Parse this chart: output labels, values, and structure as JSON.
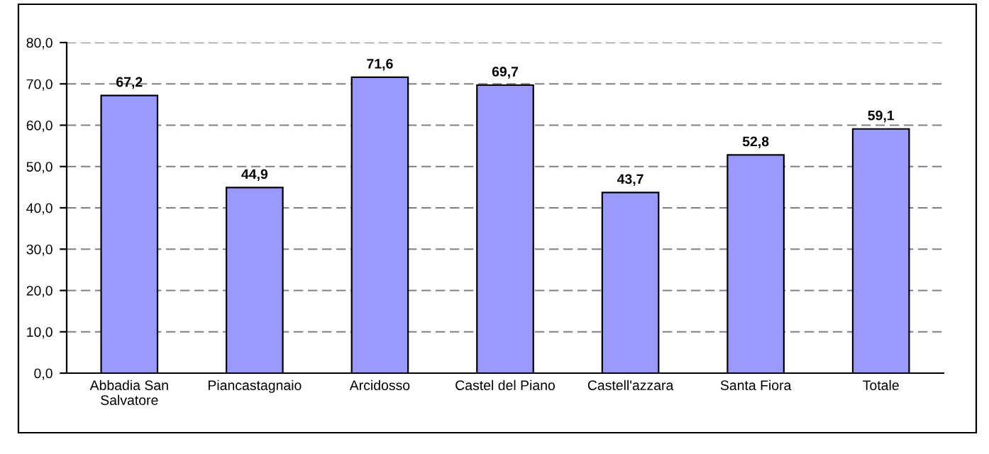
{
  "chart_data": {
    "type": "bar",
    "categories": [
      "Abbadia San\nSalvatore",
      "Piancastagnaio",
      "Arcidosso",
      "Castel del Piano",
      "Castell'azzara",
      "Santa Fiora",
      "Totale"
    ],
    "values": [
      67.2,
      44.9,
      71.6,
      69.7,
      43.7,
      52.8,
      59.1
    ],
    "value_labels": [
      "67,2",
      "44,9",
      "71,6",
      "69,7",
      "43,7",
      "52,8",
      "59,1"
    ],
    "color": "#9999ff",
    "ylim": [
      0,
      80
    ],
    "yticks": [
      {
        "value": 0,
        "label": "0,0"
      },
      {
        "value": 10,
        "label": "10,0"
      },
      {
        "value": 20,
        "label": "20,0"
      },
      {
        "value": 30,
        "label": "30,0"
      },
      {
        "value": 40,
        "label": "40,0"
      },
      {
        "value": 50,
        "label": "50,0"
      },
      {
        "value": 60,
        "label": "60,0"
      },
      {
        "value": 70,
        "label": "70,0"
      },
      {
        "value": 80,
        "label": "80,0"
      }
    ],
    "grid": "y"
  }
}
